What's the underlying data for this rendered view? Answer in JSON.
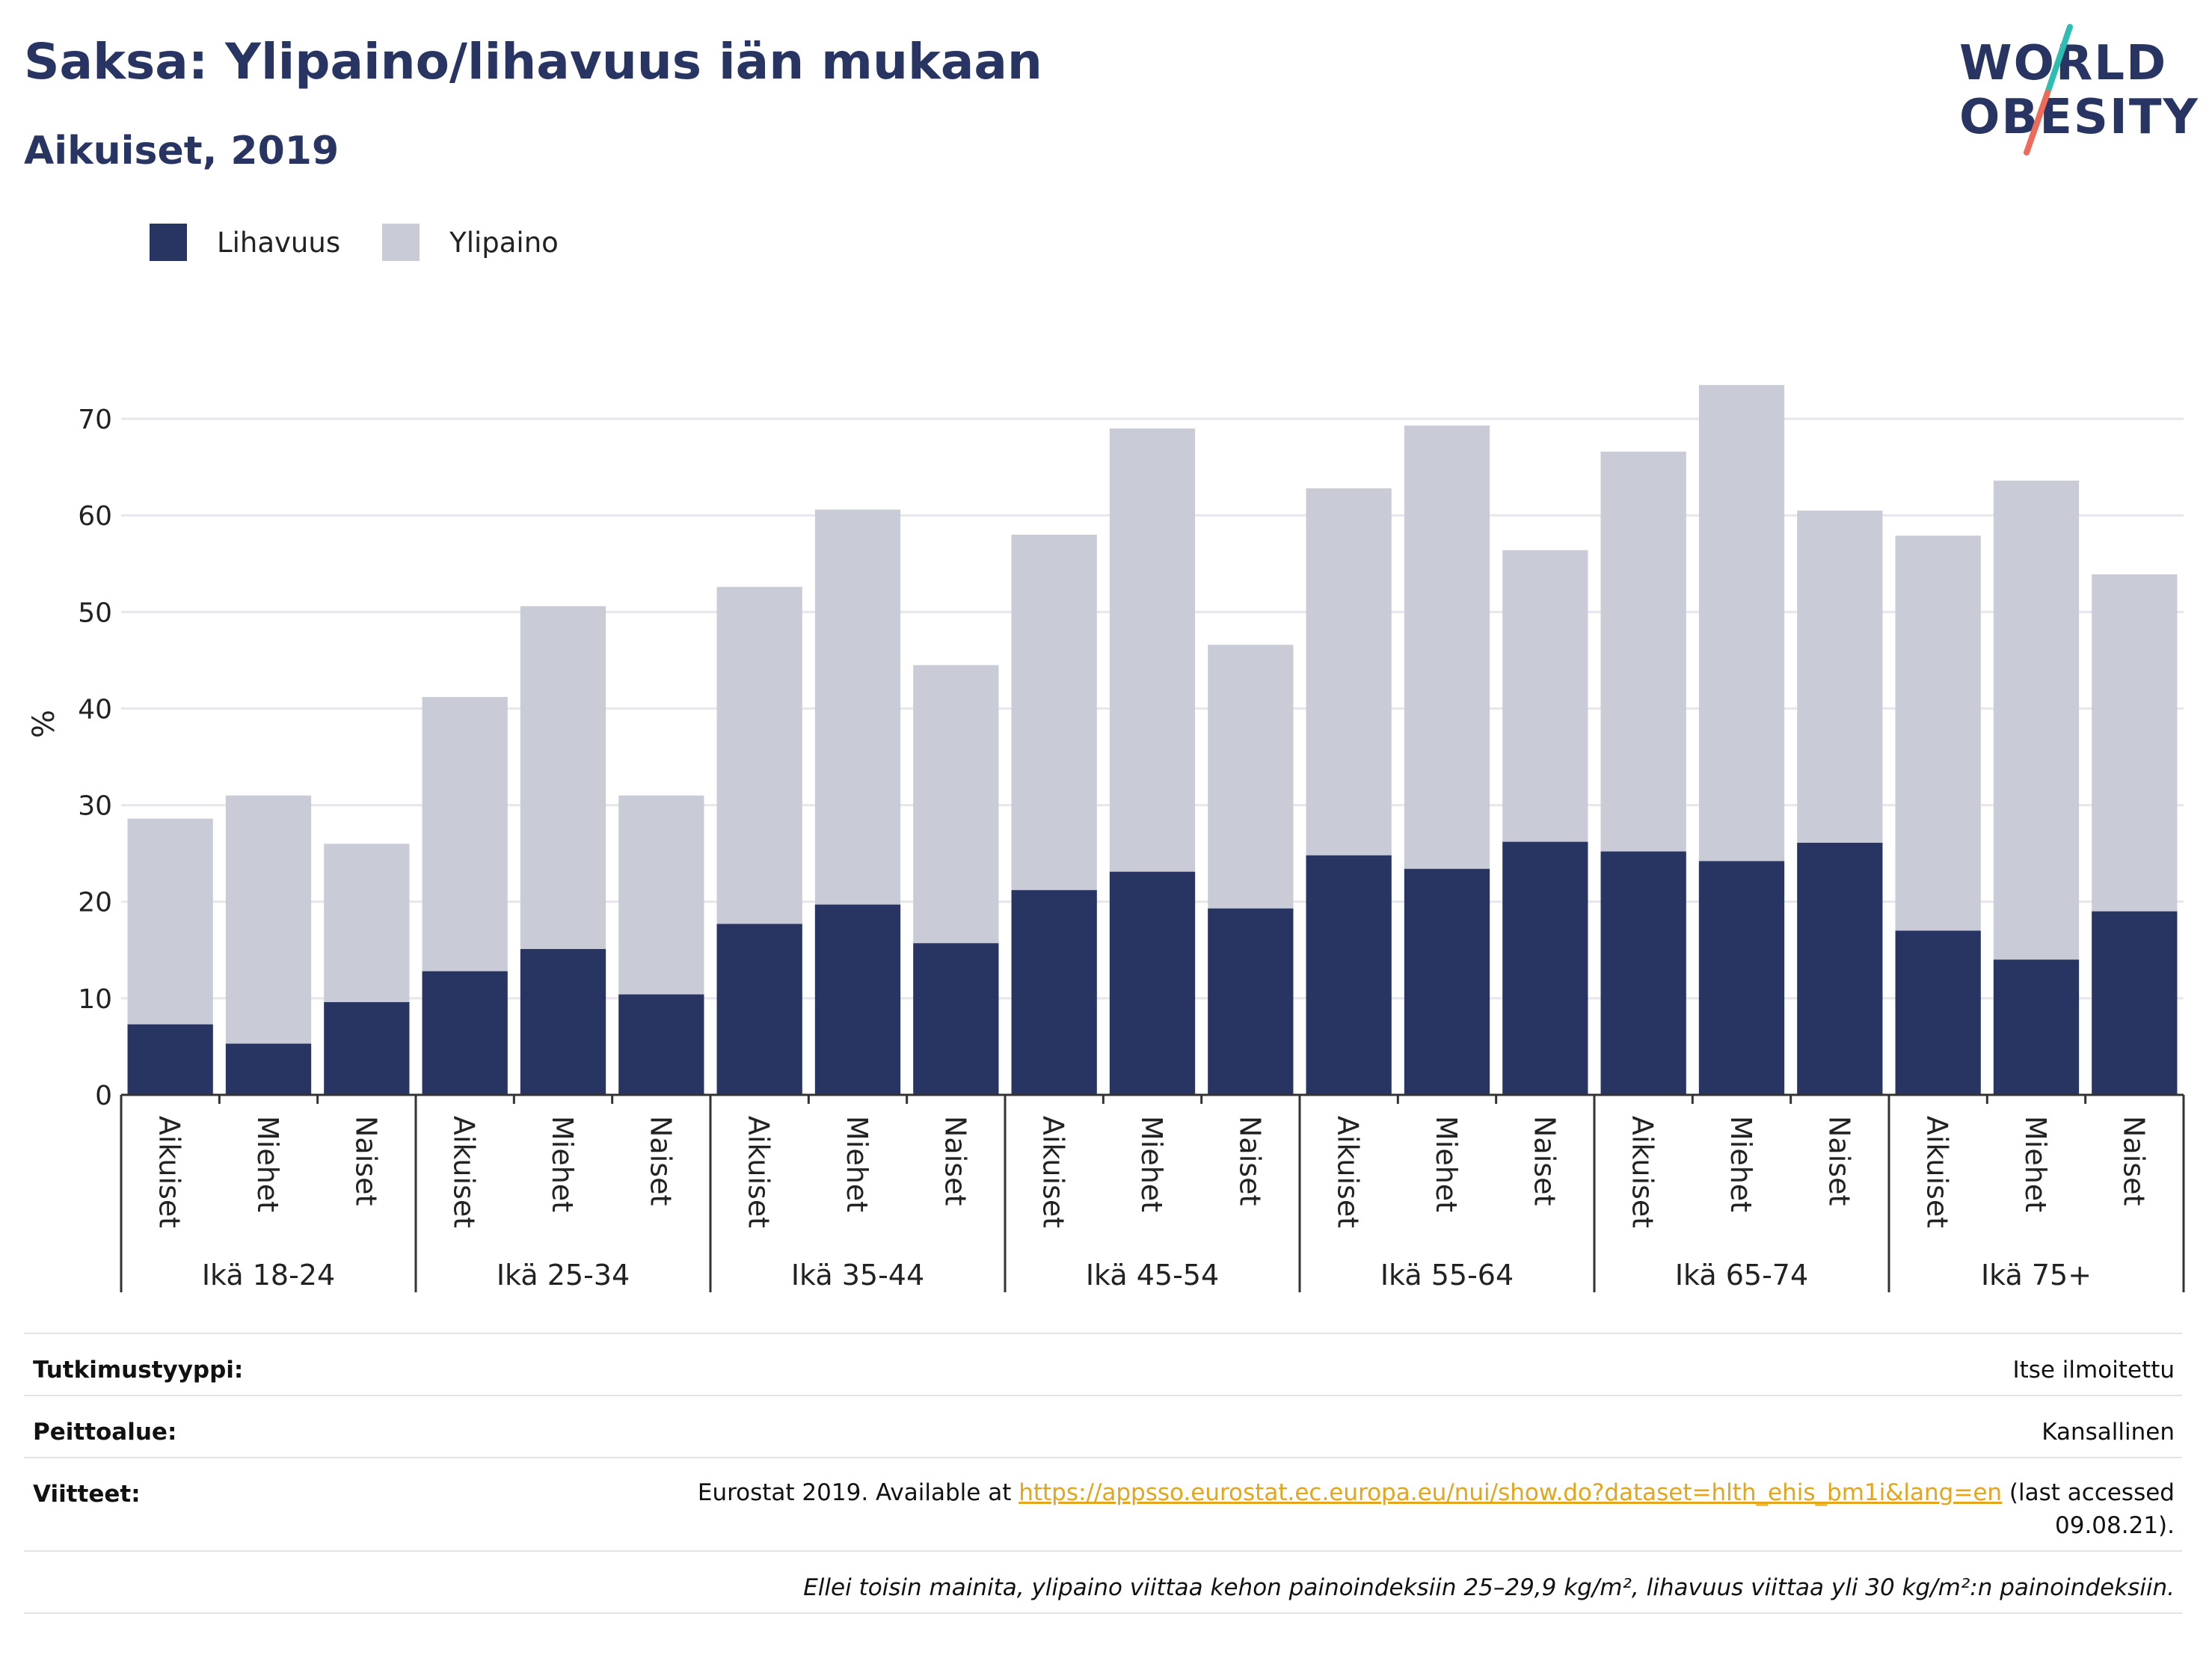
{
  "header": {
    "title": "Saksa: Ylipaino/lihavuus iän mukaan",
    "subtitle": "Aikuiset, 2019"
  },
  "logo": {
    "line1": "WORLD",
    "line2": "OBESITY",
    "icon": "world-obesity-slash-logo"
  },
  "colors": {
    "obesity": "#283562",
    "overweight": "#c9cbd7",
    "grid": "#e6e6ec",
    "axis": "#333333",
    "link": "#e3a51c"
  },
  "chart_data": {
    "type": "bar",
    "stacked": false,
    "overlapped": true,
    "ylabel": "%",
    "ylim": [
      0,
      70
    ],
    "yticks": [
      0,
      10,
      20,
      30,
      40,
      50,
      60,
      70
    ],
    "grid": true,
    "legend": {
      "placement": "top-left",
      "entries": [
        "Lihavuus",
        "Ylipaino"
      ]
    },
    "groups": [
      {
        "label": "Ikä 18-24",
        "categories": [
          "Aikuiset",
          "Miehet",
          "Naiset"
        ]
      },
      {
        "label": "Ikä 25-34",
        "categories": [
          "Aikuiset",
          "Miehet",
          "Naiset"
        ]
      },
      {
        "label": "Ikä 35-44",
        "categories": [
          "Aikuiset",
          "Miehet",
          "Naiset"
        ]
      },
      {
        "label": "Ikä 45-54",
        "categories": [
          "Aikuiset",
          "Miehet",
          "Naiset"
        ]
      },
      {
        "label": "Ikä 55-64",
        "categories": [
          "Aikuiset",
          "Miehet",
          "Naiset"
        ]
      },
      {
        "label": "Ikä 65-74",
        "categories": [
          "Aikuiset",
          "Miehet",
          "Naiset"
        ]
      },
      {
        "label": "Ikä 75+",
        "categories": [
          "Aikuiset",
          "Miehet",
          "Naiset"
        ]
      }
    ],
    "series": [
      {
        "name": "Lihavuus",
        "values": [
          7.3,
          5.3,
          9.6,
          12.8,
          15.1,
          10.4,
          17.7,
          19.7,
          15.7,
          21.2,
          23.1,
          19.3,
          24.8,
          23.4,
          26.2,
          25.2,
          24.2,
          26.1,
          17.0,
          14.0,
          19.0
        ]
      },
      {
        "name": "Ylipaino",
        "values": [
          28.6,
          31.0,
          26.0,
          41.2,
          50.6,
          31.0,
          52.6,
          60.6,
          44.5,
          58.0,
          69.0,
          46.6,
          62.8,
          69.3,
          56.4,
          66.6,
          73.5,
          60.5,
          57.9,
          63.6,
          53.9
        ]
      }
    ]
  },
  "footer": {
    "survey_label": "Tutkimustyyppi:",
    "survey_value": "Itse ilmoitettu",
    "coverage_label": "Peittoalue:",
    "coverage_value": "Kansallinen",
    "refs_label": "Viitteet:",
    "refs_prefix": "Eurostat 2019. Available at ",
    "refs_link": "https://appsso.eurostat.ec.europa.eu/nui/show.do?dataset=hlth_ehis_bm1i&lang=en",
    "refs_suffix_1": " (last accessed",
    "refs_suffix_2": "09.08.21).",
    "note": "Ellei toisin mainita, ylipaino viittaa kehon painoindeksiin 25–29,9 kg/m², lihavuus viittaa yli 30 kg/m²:n painoindeksiin."
  }
}
